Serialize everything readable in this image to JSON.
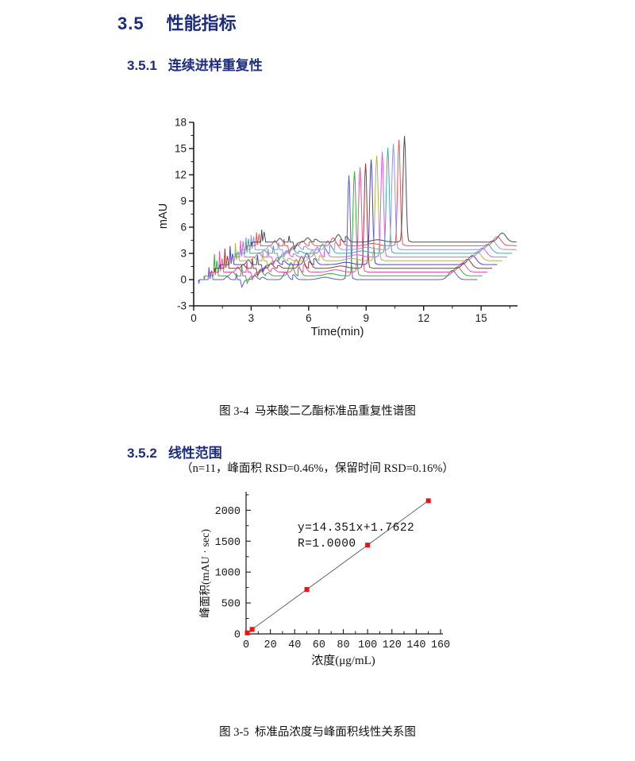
{
  "page": {
    "background": "#ffffff",
    "heading_color": "#1c2d80"
  },
  "sections": {
    "main": {
      "number": "3.5",
      "title": "性能指标"
    },
    "sub1": {
      "number": "3.5.1",
      "title": "连续进样重复性"
    },
    "sub2": {
      "number": "3.5.2",
      "title": "线性范围"
    }
  },
  "figure1": {
    "caption": "图 3-4  马来酸二乙酯标准品重复性谱图",
    "caption_note": "（n=11，峰面积 RSD=0.46%，保留时间 RSD=0.16%）"
  },
  "figure2": {
    "caption": "图 3-5  标准品浓度与峰面积线性关系图"
  },
  "chart_data": [
    {
      "id": "repeatability-chromatogram",
      "type": "line",
      "xlabel": "Time(min)",
      "ylabel": "mAU",
      "xlim": [
        0,
        16.9
      ],
      "ylim": [
        -3,
        18
      ],
      "x_major_ticks": [
        0,
        3,
        6,
        9,
        12,
        15
      ],
      "x_minor_step": 1.5,
      "y_major_ticks": [
        -3,
        0,
        3,
        6,
        9,
        12,
        15,
        18
      ],
      "y_minor_step": 1.5,
      "axis_color": "#1a1a1a",
      "n_injections": 11,
      "peak_area_rsd_percent": 0.46,
      "retention_time_rsd_percent": 0.16,
      "traces": [
        {
          "color": "#5a5ad2",
          "baseline": 0.0,
          "start": 0.25,
          "main_peak_time": 8.1,
          "main_peak_mau": 11.95,
          "late_peak_time": 13.5,
          "end": 14.8
        },
        {
          "color": "#3aaa3a",
          "baseline": 0.43,
          "start": 0.53,
          "main_peak_time": 8.39,
          "main_peak_mau": 12.4,
          "late_peak_time": 13.76,
          "end": 15.06
        },
        {
          "color": "#ea4fa0",
          "baseline": 0.86,
          "start": 0.8,
          "main_peak_time": 8.68,
          "main_peak_mau": 12.85,
          "late_peak_time": 14.02,
          "end": 15.32
        },
        {
          "color": "#9c3434",
          "baseline": 1.29,
          "start": 1.08,
          "main_peak_time": 8.97,
          "main_peak_mau": 13.3,
          "late_peak_time": 14.28,
          "end": 15.58
        },
        {
          "color": "#4444cc",
          "baseline": 1.72,
          "start": 1.35,
          "main_peak_time": 9.26,
          "main_peak_mau": 13.75,
          "late_peak_time": 14.54,
          "end": 15.84
        },
        {
          "color": "#b2b24e",
          "baseline": 2.15,
          "start": 1.63,
          "main_peak_time": 9.55,
          "main_peak_mau": 14.2,
          "late_peak_time": 14.8,
          "end": 16.1
        },
        {
          "color": "#e25ae2",
          "baseline": 2.58,
          "start": 1.9,
          "main_peak_time": 9.84,
          "main_peak_mau": 14.65,
          "late_peak_time": 15.06,
          "end": 16.36
        },
        {
          "color": "#3aacac",
          "baseline": 3.01,
          "start": 2.18,
          "main_peak_time": 10.13,
          "main_peak_mau": 15.1,
          "late_peak_time": 15.32,
          "end": 16.62
        },
        {
          "color": "#9393f0",
          "baseline": 3.44,
          "start": 2.45,
          "main_peak_time": 10.42,
          "main_peak_mau": 15.55,
          "late_peak_time": 15.58,
          "end": 16.85
        },
        {
          "color": "#ef5454",
          "baseline": 3.87,
          "start": 2.73,
          "main_peak_time": 10.71,
          "main_peak_mau": 16.0,
          "late_peak_time": 15.84,
          "end": 16.85
        },
        {
          "color": "#4d4d4d",
          "baseline": 4.3,
          "start": 3.0,
          "main_peak_time": 11.0,
          "main_peak_mau": 16.45,
          "late_peak_time": 16.1,
          "end": 16.85
        }
      ]
    },
    {
      "id": "linearity-plot",
      "type": "scatter",
      "xlabel": "浓度(μg/mL)",
      "ylabel": "峰面积(mAU · sec)",
      "xlim": [
        0,
        160
      ],
      "ylim": [
        0,
        2300
      ],
      "x_major_step": 20,
      "x_minor_step": 10,
      "y_major_step": 500,
      "y_minor_step": 250,
      "y_major_max": 2000,
      "points_x": [
        1,
        5,
        50,
        100,
        150
      ],
      "points_y": [
        16,
        73,
        719,
        1437,
        2154
      ],
      "marker_color": "#ee1111",
      "line_color": "#666666",
      "axis_color": "#1a1a1a",
      "slope": 14.351,
      "intercept": 1.7622,
      "equation": "y=14.351x+1.7622",
      "correlation": "R=1.0000"
    }
  ]
}
